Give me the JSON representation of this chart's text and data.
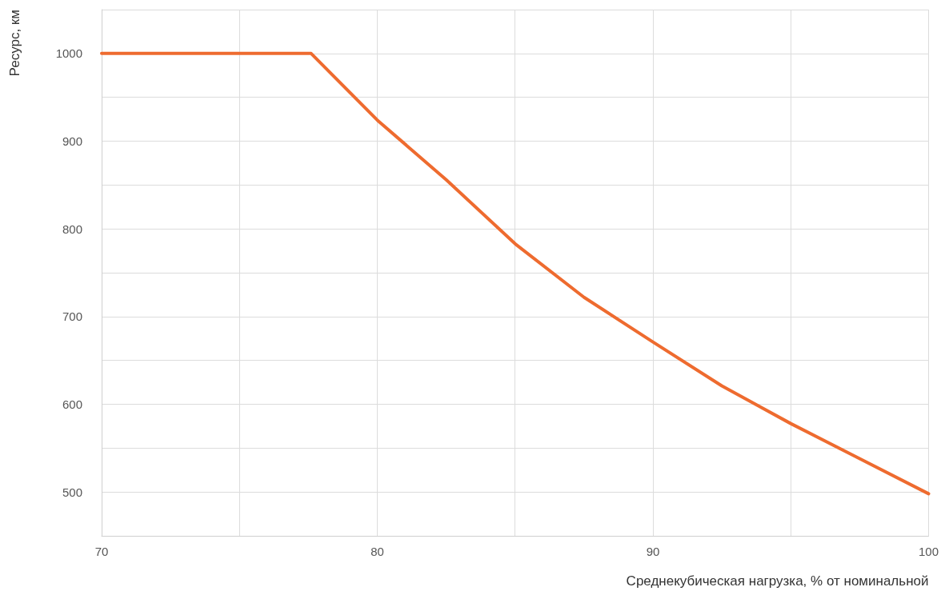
{
  "chart_data": {
    "type": "line",
    "xlabel": "Среднекубическая нагрузка, % от номинальной",
    "ylabel": "Ресурс, км",
    "series": [
      {
        "color": "#ee6b2f",
        "x": [
          70,
          77.6,
          80,
          82.5,
          85,
          87.5,
          90,
          92.5,
          95,
          97.5,
          100
        ],
        "values": [
          1000,
          1000,
          924,
          856,
          783,
          722,
          671,
          621,
          578,
          538,
          498
        ]
      }
    ],
    "xlim": [
      70,
      100
    ],
    "xticks": [
      70,
      {
        "value": 75,
        "label": null
      },
      80,
      {
        "value": 85,
        "label": null
      },
      90,
      {
        "value": 95,
        "label": null
      },
      100
    ],
    "ylim": [
      450,
      1050
    ],
    "yticks": [
      500,
      {
        "value": 550,
        "label": null
      },
      600,
      {
        "value": 650,
        "label": null
      },
      700,
      {
        "value": 750,
        "label": null
      },
      800,
      {
        "value": 850,
        "label": null
      },
      900,
      {
        "value": 950,
        "label": null
      },
      1000,
      {
        "value": 1050,
        "label": null
      }
    ],
    "grid": true,
    "marker": "none",
    "line_style": "solid"
  }
}
